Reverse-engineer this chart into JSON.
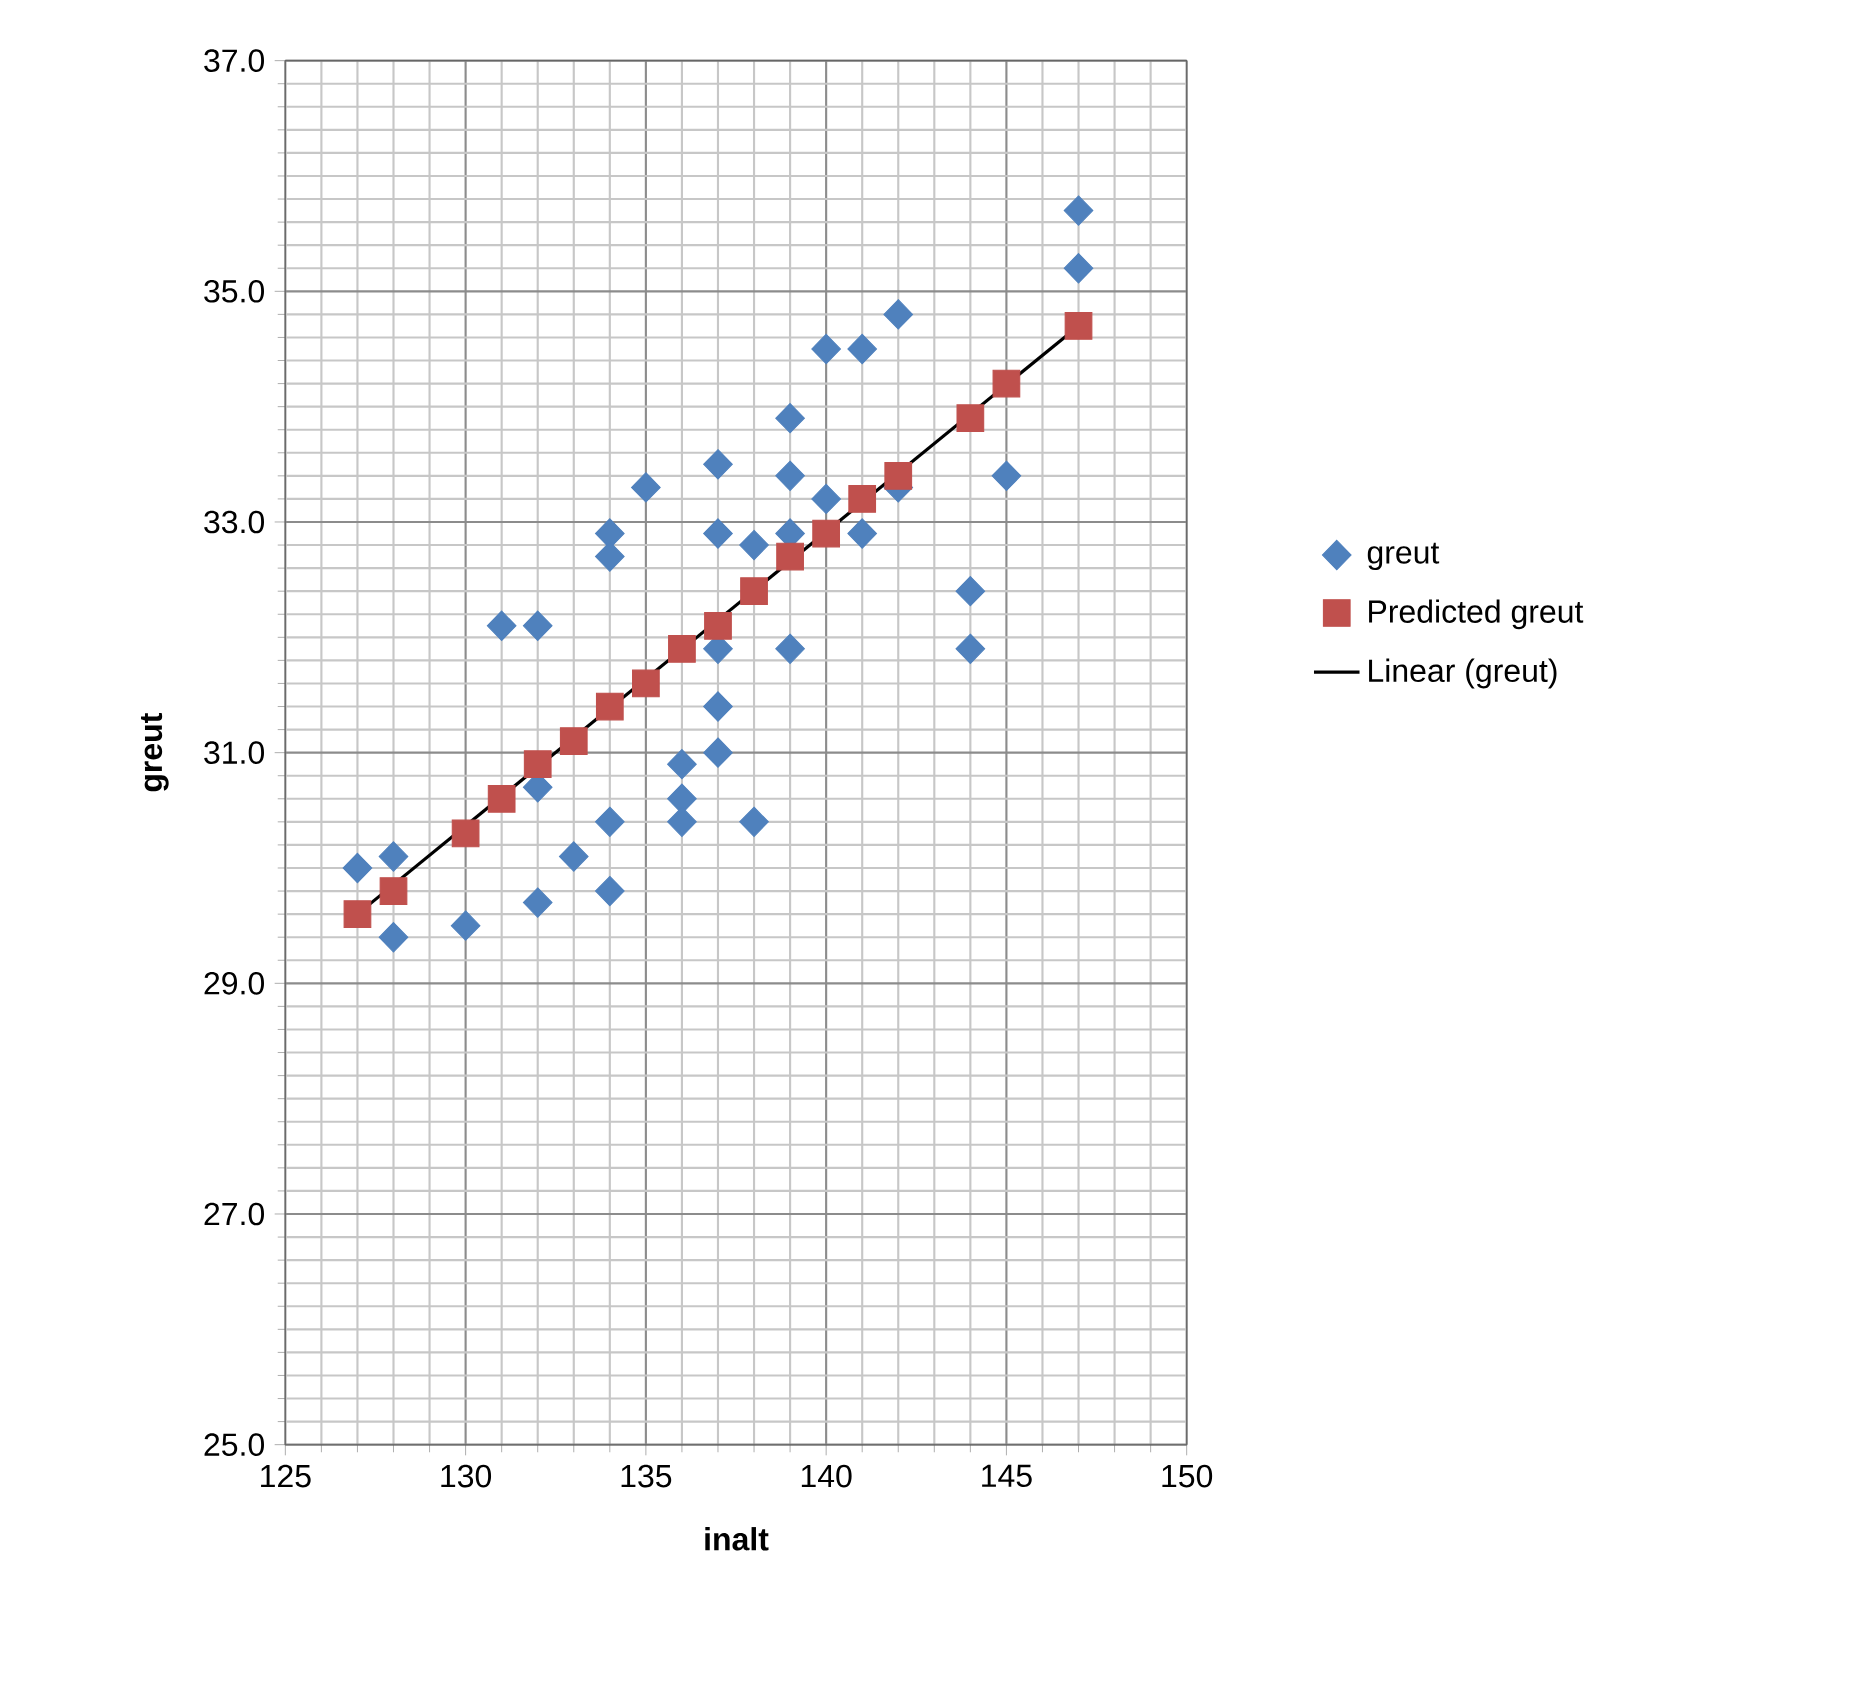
{
  "chart_data": {
    "type": "scatter",
    "xlabel": "inalt",
    "ylabel": "greut",
    "xlim": [
      125,
      150
    ],
    "xticks": [
      125,
      130,
      135,
      140,
      145,
      150
    ],
    "ylim": [
      25,
      37
    ],
    "yticks": [
      {
        "value": 25,
        "label": "25.0"
      },
      {
        "value": 27,
        "label": "27.0"
      },
      {
        "value": 29,
        "label": "29.0"
      },
      {
        "value": 31,
        "label": "31.0"
      },
      {
        "value": 33,
        "label": "33.0"
      },
      {
        "value": 35,
        "label": "35.0"
      },
      {
        "value": 37,
        "label": "37.0"
      }
    ],
    "grid": true,
    "legend": "right",
    "series": [
      {
        "name": "greut",
        "marker": "diamond",
        "color": "#4f81bd",
        "x": [
          127,
          128,
          128,
          130,
          131,
          132,
          132,
          133,
          132,
          134,
          134,
          134,
          134,
          135,
          136,
          136,
          136,
          137,
          137,
          137,
          137,
          137,
          138,
          138,
          147,
          147,
          142,
          140,
          141,
          139,
          139,
          140,
          142,
          139,
          141,
          145,
          144,
          144,
          139
        ],
        "values": [
          30.0,
          30.1,
          29.4,
          29.5,
          32.1,
          32.1,
          30.7,
          30.1,
          29.7,
          30.4,
          29.8,
          32.9,
          32.7,
          33.3,
          30.9,
          30.6,
          30.4,
          33.5,
          32.9,
          31.9,
          31.4,
          31.0,
          30.4,
          32.8,
          35.7,
          35.2,
          34.8,
          34.5,
          34.5,
          33.9,
          33.4,
          33.2,
          33.3,
          32.9,
          32.9,
          33.4,
          32.4,
          31.9,
          31.9
        ]
      },
      {
        "name": "Predicted greut",
        "marker": "square",
        "color": "#c0504d",
        "x": [
          127,
          128,
          130,
          131,
          132,
          133,
          134,
          135,
          136,
          137,
          138,
          139,
          140,
          141,
          142,
          144,
          145,
          147
        ],
        "values": [
          29.6,
          29.8,
          30.3,
          30.6,
          30.9,
          31.1,
          31.4,
          31.6,
          31.9,
          32.1,
          32.4,
          32.7,
          32.9,
          33.2,
          33.4,
          33.9,
          34.2,
          34.7
        ]
      },
      {
        "name": "Linear (greut)",
        "type": "line",
        "marker": "none",
        "line_style": "solid",
        "color": "#000000",
        "x": [
          127,
          147
        ],
        "values": [
          29.6,
          34.7
        ]
      }
    ]
  }
}
